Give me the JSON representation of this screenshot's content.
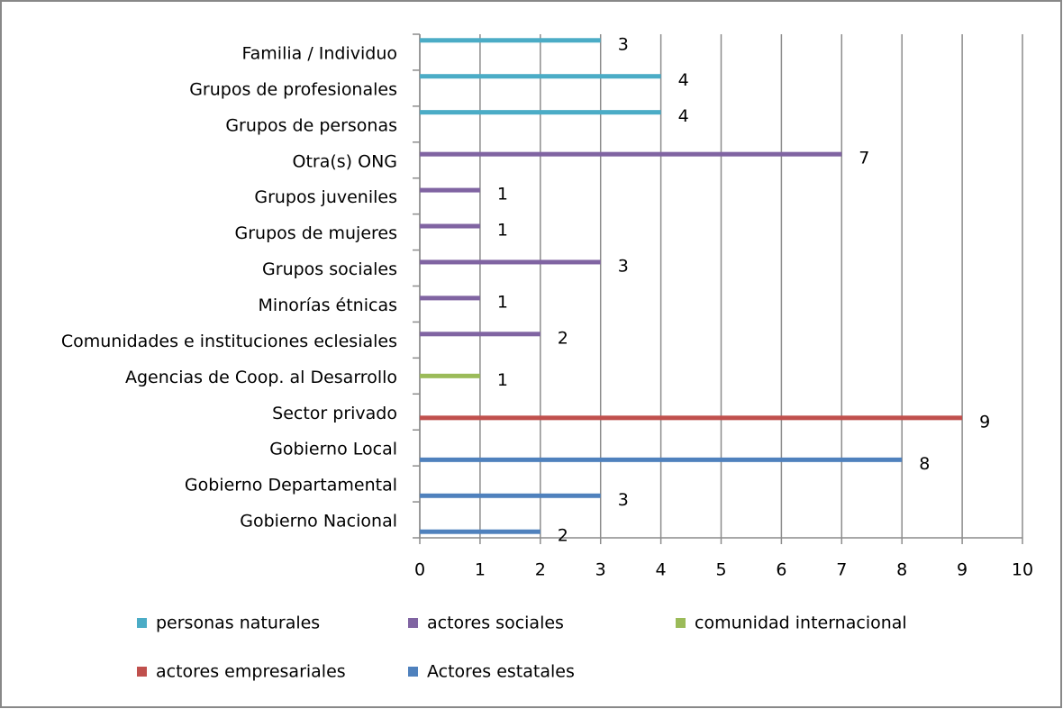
{
  "chart_data": {
    "type": "bar",
    "orientation": "horizontal",
    "categories": [
      "Familia / Individuo",
      "Grupos de profesionales",
      "Grupos de personas",
      "Otra(s) ONG",
      "Grupos juveniles",
      "Grupos de mujeres",
      "Grupos sociales",
      "Minorías étnicas",
      "Comunidades e instituciones eclesiales",
      "Agencias de Coop. al Desarrollo",
      "Sector privado",
      "Gobierno Local",
      "Gobierno Departamental",
      "Gobierno Nacional"
    ],
    "series": [
      {
        "name": "personas naturales",
        "color": "#4bacc6",
        "values": [
          3,
          4,
          4,
          null,
          null,
          null,
          null,
          null,
          null,
          null,
          null,
          null,
          null,
          null
        ]
      },
      {
        "name": "actores sociales",
        "color": "#8064a2",
        "values": [
          null,
          null,
          null,
          7,
          1,
          1,
          3,
          1,
          2,
          null,
          null,
          null,
          null,
          null
        ]
      },
      {
        "name": "comunidad internacional",
        "color": "#9bbb59",
        "values": [
          null,
          null,
          null,
          null,
          null,
          null,
          null,
          null,
          null,
          1,
          null,
          null,
          null,
          null
        ]
      },
      {
        "name": "actores empresariales",
        "color": "#c0504d",
        "values": [
          null,
          null,
          null,
          null,
          null,
          null,
          null,
          null,
          null,
          null,
          9,
          null,
          null,
          null
        ]
      },
      {
        "name": "Actores estatales",
        "color": "#4f81bd",
        "values": [
          null,
          null,
          null,
          null,
          null,
          null,
          null,
          null,
          null,
          null,
          null,
          8,
          3,
          2
        ]
      }
    ],
    "xlim": [
      0,
      10
    ],
    "xticks": [
      0,
      1,
      2,
      3,
      4,
      5,
      6,
      7,
      8,
      9,
      10
    ],
    "grid": true,
    "legend": "bottom"
  }
}
